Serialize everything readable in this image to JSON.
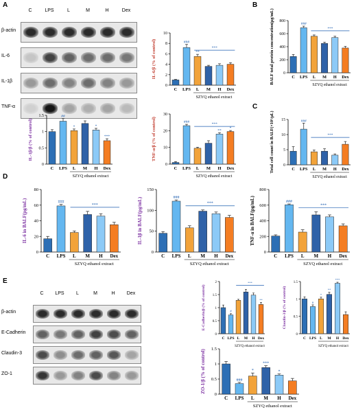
{
  "panels": {
    "A": "A",
    "B": "B",
    "C": "C",
    "D": "D",
    "E": "E"
  },
  "colors": {
    "C": "#2d6fb5",
    "LPS": "#64b7f0",
    "L": "#f2a33a",
    "M": "#2f62a8",
    "H": "#8ccaf7",
    "Dex": "#f47d22",
    "text_red": "#c0392b",
    "text_blue": "#1f5fb0",
    "mark": "#1f5fb0"
  },
  "blot_A": {
    "lanes": [
      "C",
      "LPS",
      "L",
      "M",
      "H",
      "Dex"
    ],
    "rows": [
      {
        "label": "β-actin",
        "intensity": [
          0.85,
          0.85,
          0.85,
          0.85,
          0.85,
          0.85
        ]
      },
      {
        "label": "IL-6",
        "intensity": [
          0.15,
          0.75,
          0.6,
          0.55,
          0.55,
          0.5
        ]
      },
      {
        "label": "IL-1β",
        "intensity": [
          0.35,
          0.55,
          0.45,
          0.55,
          0.45,
          0.35
        ]
      },
      {
        "label": "TNF-α",
        "intensity": [
          0.1,
          0.95,
          0.3,
          0.25,
          0.3,
          0.2
        ]
      }
    ]
  },
  "blot_E": {
    "lanes": [
      "C",
      "LPS",
      "L",
      "M",
      "H",
      "Dex"
    ],
    "rows": [
      {
        "label": "β-actin",
        "intensity": [
          0.85,
          0.85,
          0.85,
          0.85,
          0.85,
          0.85
        ]
      },
      {
        "label": "E-Cadherin",
        "intensity": [
          0.6,
          0.5,
          0.6,
          0.75,
          0.7,
          0.6
        ]
      },
      {
        "label": "Claudin-3",
        "intensity": [
          0.7,
          0.4,
          0.55,
          0.6,
          0.65,
          0.3
        ]
      },
      {
        "label": "ZO-1",
        "intensity": [
          0.8,
          0.35,
          0.45,
          0.7,
          0.45,
          0.35
        ]
      }
    ]
  },
  "chart_data": [
    {
      "id": "il6_wb",
      "type": "bar",
      "categories": [
        "C",
        "LPS",
        "L",
        "M",
        "H",
        "Dex"
      ],
      "values": [
        1,
        7.2,
        5.5,
        3.6,
        3.8,
        4.0
      ],
      "errors": [
        0.1,
        0.6,
        0.4,
        0.2,
        0.3,
        0.3
      ],
      "ylabel": "IL-6/β (% of control)",
      "ylim": [
        0,
        10
      ],
      "yticks": [
        0,
        2,
        4,
        6,
        8,
        10
      ],
      "sig": [
        "",
        "###",
        "**",
        "",
        "",
        ""
      ],
      "bracket_sig": "***",
      "xgroup": "SZYQ ethanol extract",
      "ylabel_color": "#c0392b"
    },
    {
      "id": "balf_protein",
      "type": "bar",
      "categories": [
        "C",
        "LPS",
        "L",
        "M",
        "H",
        "Dex"
      ],
      "values": [
        250,
        690,
        560,
        450,
        540,
        380
      ],
      "errors": [
        30,
        25,
        20,
        20,
        20,
        25
      ],
      "ylabel": "BALF total protein concentration(μg/mL)",
      "ylim": [
        0,
        800
      ],
      "yticks": [
        0,
        200,
        400,
        600,
        800
      ],
      "sig": [
        "",
        "###",
        "",
        "",
        "",
        ""
      ],
      "bracket_sig": "***",
      "xgroup": "SZYQ ethanol extract",
      "ylabel_color": "#000000"
    },
    {
      "id": "il1b_wb",
      "type": "bar",
      "categories": [
        "C",
        "LPS",
        "L",
        "M",
        "H",
        "Dex"
      ],
      "values": [
        1.0,
        1.32,
        1.03,
        1.25,
        1.05,
        0.72
      ],
      "errors": [
        0.06,
        0.08,
        0.05,
        0.08,
        0.05,
        0.06
      ],
      "ylabel": "IL-1β/β (% of control)",
      "ylim": [
        0,
        1.5
      ],
      "yticks": [
        0,
        0.5,
        1.0,
        1.5
      ],
      "sig": [
        "",
        "##",
        "*",
        "",
        "*",
        "***"
      ],
      "bracket_sig": "",
      "xgroup": "SZYQ ethanol extract",
      "ylabel_color": "#7b2fa1"
    },
    {
      "id": "tnfa_wb",
      "type": "bar",
      "categories": [
        "C",
        "LPS",
        "L",
        "M",
        "H",
        "Dex"
      ],
      "values": [
        1,
        23,
        9.5,
        12.5,
        18,
        19.5
      ],
      "errors": [
        0.5,
        0.8,
        0.6,
        1.5,
        0.8,
        0.6
      ],
      "ylabel": "TNF-α/β (% of control)",
      "ylim": [
        0,
        30
      ],
      "yticks": [
        0,
        10,
        20,
        30
      ],
      "sig": [
        "",
        "###",
        "",
        "",
        "**",
        "*"
      ],
      "bracket_sig": "***",
      "xgroup": "SZYQ ethanol extract",
      "ylabel_color": "#c0392b"
    },
    {
      "id": "balf_cells",
      "type": "bar",
      "categories": [
        "C",
        "LPS",
        "L",
        "M",
        "H",
        "Dex"
      ],
      "values": [
        4.5,
        11.8,
        4.3,
        4.5,
        3.2,
        6.8
      ],
      "errors": [
        1.5,
        2.0,
        0.6,
        0.8,
        0.4,
        0.9
      ],
      "ylabel": "Total cell count in BALF(×10⁵/μL)",
      "ylim": [
        0,
        15
      ],
      "yticks": [
        0,
        5,
        10,
        15
      ],
      "sig": [
        "",
        "###",
        "",
        "",
        "",
        ""
      ],
      "bracket_sig": "***",
      "xgroup": "SZYQ ethanol extract",
      "ylabel_color": "#000000"
    },
    {
      "id": "il6_balf",
      "type": "bar",
      "categories": [
        "C",
        "LPS",
        "L",
        "M",
        "H",
        "Dex"
      ],
      "values": [
        17,
        59,
        25,
        48,
        46,
        35
      ],
      "errors": [
        3,
        2,
        2,
        4,
        3,
        3
      ],
      "ylabel": "IL-6 in BALF(pg/mL)",
      "ylim": [
        0,
        80
      ],
      "yticks": [
        0,
        20,
        40,
        60,
        80
      ],
      "sig": [
        "",
        "###",
        "",
        "",
        "",
        ""
      ],
      "bracket_sig": "***",
      "xgroup": "SZYQ ethanol extract",
      "ylabel_color": "#7b2fa1"
    },
    {
      "id": "il1b_balf",
      "type": "bar",
      "categories": [
        "C",
        "LPS",
        "L",
        "M",
        "H",
        "Dex"
      ],
      "values": [
        45,
        122,
        58,
        98,
        92,
        83
      ],
      "errors": [
        4,
        3,
        5,
        3,
        4,
        5
      ],
      "ylabel": "IL-1β in BALF(pg/mL)",
      "ylim": [
        0,
        150
      ],
      "yticks": [
        0,
        50,
        100,
        150
      ],
      "sig": [
        "",
        "###",
        "",
        "",
        "",
        ""
      ],
      "bracket_sig": "***",
      "xgroup": "SZYQ ethanol extract",
      "ylabel_color": "#7b2fa1"
    },
    {
      "id": "tnfa_balf",
      "type": "bar",
      "categories": [
        "C",
        "LPS",
        "L",
        "M",
        "H",
        "Dex"
      ],
      "values": [
        205,
        605,
        255,
        475,
        450,
        335
      ],
      "errors": [
        15,
        10,
        30,
        40,
        25,
        25
      ],
      "ylabel": "TNF-α in BALF(pg/mL)",
      "ylim": [
        0,
        800
      ],
      "yticks": [
        0,
        200,
        400,
        600,
        800
      ],
      "sig": [
        "",
        "###",
        "",
        "",
        "",
        ""
      ],
      "bracket_sig": "***",
      "xgroup": "SZYQ ethanol extract",
      "ylabel_color": "#000000"
    },
    {
      "id": "ecad_wb",
      "type": "bar",
      "categories": [
        "C",
        "LPS",
        "L",
        "M",
        "H",
        "Dex"
      ],
      "values": [
        1.0,
        0.72,
        1.28,
        1.6,
        1.48,
        1.12
      ],
      "errors": [
        0.1,
        0.05,
        0.04,
        0.1,
        0.08,
        0.08
      ],
      "ylabel": "E-Cadherin/β (% of control)",
      "ylim": [
        0,
        2.0
      ],
      "yticks": [
        0,
        0.5,
        1.0,
        1.5,
        2.0
      ],
      "sig": [
        "",
        "#",
        "",
        "",
        "",
        "**"
      ],
      "bracket_sig": "***",
      "xgroup": "SZYQ ethanol extract",
      "ylabel_color": "#7b2fa1"
    },
    {
      "id": "cld3_wb",
      "type": "bar",
      "categories": [
        "C",
        "LPS",
        "L",
        "M",
        "H",
        "Dex"
      ],
      "values": [
        1.0,
        0.78,
        1.0,
        1.13,
        1.45,
        0.55
      ],
      "errors": [
        0.06,
        0.05,
        0.05,
        0.06,
        0.03,
        0.08
      ],
      "ylabel": "Claudin-3/β (% of control)",
      "ylim": [
        0,
        1.5
      ],
      "yticks": [
        0,
        0.5,
        1.0,
        1.5
      ],
      "sig": [
        "",
        "#",
        "*",
        "**",
        "***",
        ""
      ],
      "bracket_sig": "",
      "xgroup": "SZYQ ethanol extract",
      "ylabel_color": "#7b2fa1"
    },
    {
      "id": "zo1_wb",
      "type": "bar",
      "categories": [
        "C",
        "LPS",
        "L",
        "M",
        "H",
        "Dex"
      ],
      "values": [
        1.0,
        0.35,
        0.6,
        0.88,
        0.63,
        0.44
      ],
      "errors": [
        0.08,
        0.04,
        0.1,
        0.06,
        0.04,
        0.08
      ],
      "ylabel": "ZO-1/β (% of control)",
      "ylim": [
        0,
        1.5
      ],
      "yticks": [
        0,
        0.5,
        1.0,
        1.5
      ],
      "sig": [
        "",
        "###",
        "*",
        "***",
        "*",
        ""
      ],
      "bracket_sig": "",
      "xgroup": "SZYQ ethanol extract",
      "ylabel_color": "#7b2fa1"
    }
  ]
}
